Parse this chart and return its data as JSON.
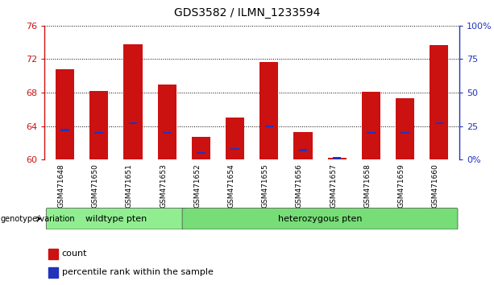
{
  "title": "GDS3582 / ILMN_1233594",
  "categories": [
    "GSM471648",
    "GSM471650",
    "GSM471651",
    "GSM471653",
    "GSM471652",
    "GSM471654",
    "GSM471655",
    "GSM471656",
    "GSM471657",
    "GSM471658",
    "GSM471659",
    "GSM471660"
  ],
  "count_values": [
    70.8,
    68.2,
    73.8,
    69.0,
    62.7,
    65.0,
    71.7,
    63.3,
    60.2,
    68.1,
    67.3,
    73.7
  ],
  "percentile_values": [
    22,
    20,
    27,
    20,
    5,
    8,
    25,
    7,
    1,
    20,
    20,
    27
  ],
  "ymin": 60,
  "ymax": 76,
  "y2min": 0,
  "y2max": 100,
  "yticks": [
    60,
    64,
    68,
    72,
    76
  ],
  "y2ticks": [
    0,
    25,
    50,
    75,
    100
  ],
  "y2ticklabels": [
    "0%",
    "25",
    "50",
    "75",
    "100%"
  ],
  "bar_color": "#cc1111",
  "blue_color": "#2233bb",
  "wildtype_label": "wildtype pten",
  "heterozygous_label": "heterozygous pten",
  "wildtype_count": 4,
  "heterozygous_count": 8,
  "genotype_label": "genotype/variation",
  "legend_count": "count",
  "legend_percentile": "percentile rank within the sample",
  "wildtype_color": "#90ee90",
  "heterozygous_color": "#77dd77",
  "xlabel_area_color": "#c8c8c8"
}
